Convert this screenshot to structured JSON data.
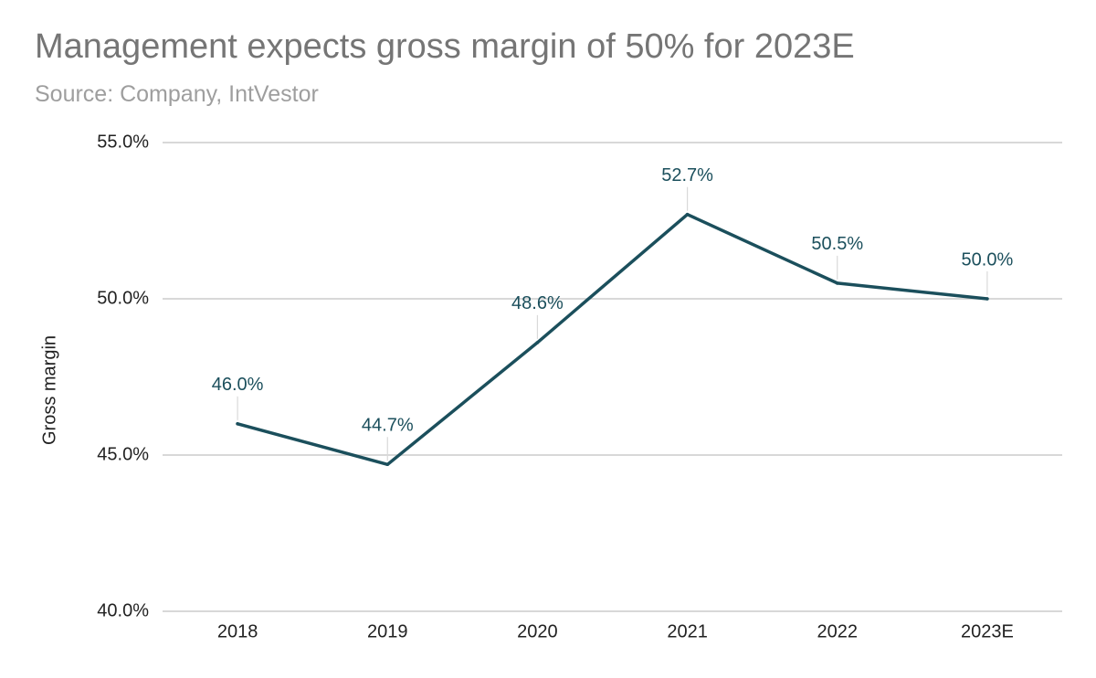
{
  "title": "Management expects gross margin of 50% for 2023E",
  "subtitle": "Source: Company, IntVestor",
  "colors": {
    "line": "#1b4f5c",
    "label": "#1b4f5c",
    "grid": "#cccccc",
    "leader": "#d9d9d9",
    "title": "#757575",
    "subtitle": "#9e9e9e"
  },
  "chart_data": {
    "type": "line",
    "title": "Management expects gross margin of 50% for 2023E",
    "subtitle": "Source: Company, IntVestor",
    "xlabel": "",
    "ylabel": "Gross margin",
    "categories": [
      "2018",
      "2019",
      "2020",
      "2021",
      "2022",
      "2023E"
    ],
    "series": [
      {
        "values": [
          46.0,
          44.7,
          48.6,
          52.7,
          50.5,
          50.0
        ],
        "labels": [
          "46.0%",
          "44.7%",
          "48.6%",
          "52.7%",
          "50.5%",
          "50.0%"
        ]
      }
    ],
    "ylim": [
      40,
      55
    ],
    "yticks": [
      40,
      45,
      50,
      55
    ],
    "ytick_labels": [
      "40.0%",
      "45.0%",
      "50.0%",
      "55.0%"
    ],
    "grid": true,
    "legend": "none"
  }
}
